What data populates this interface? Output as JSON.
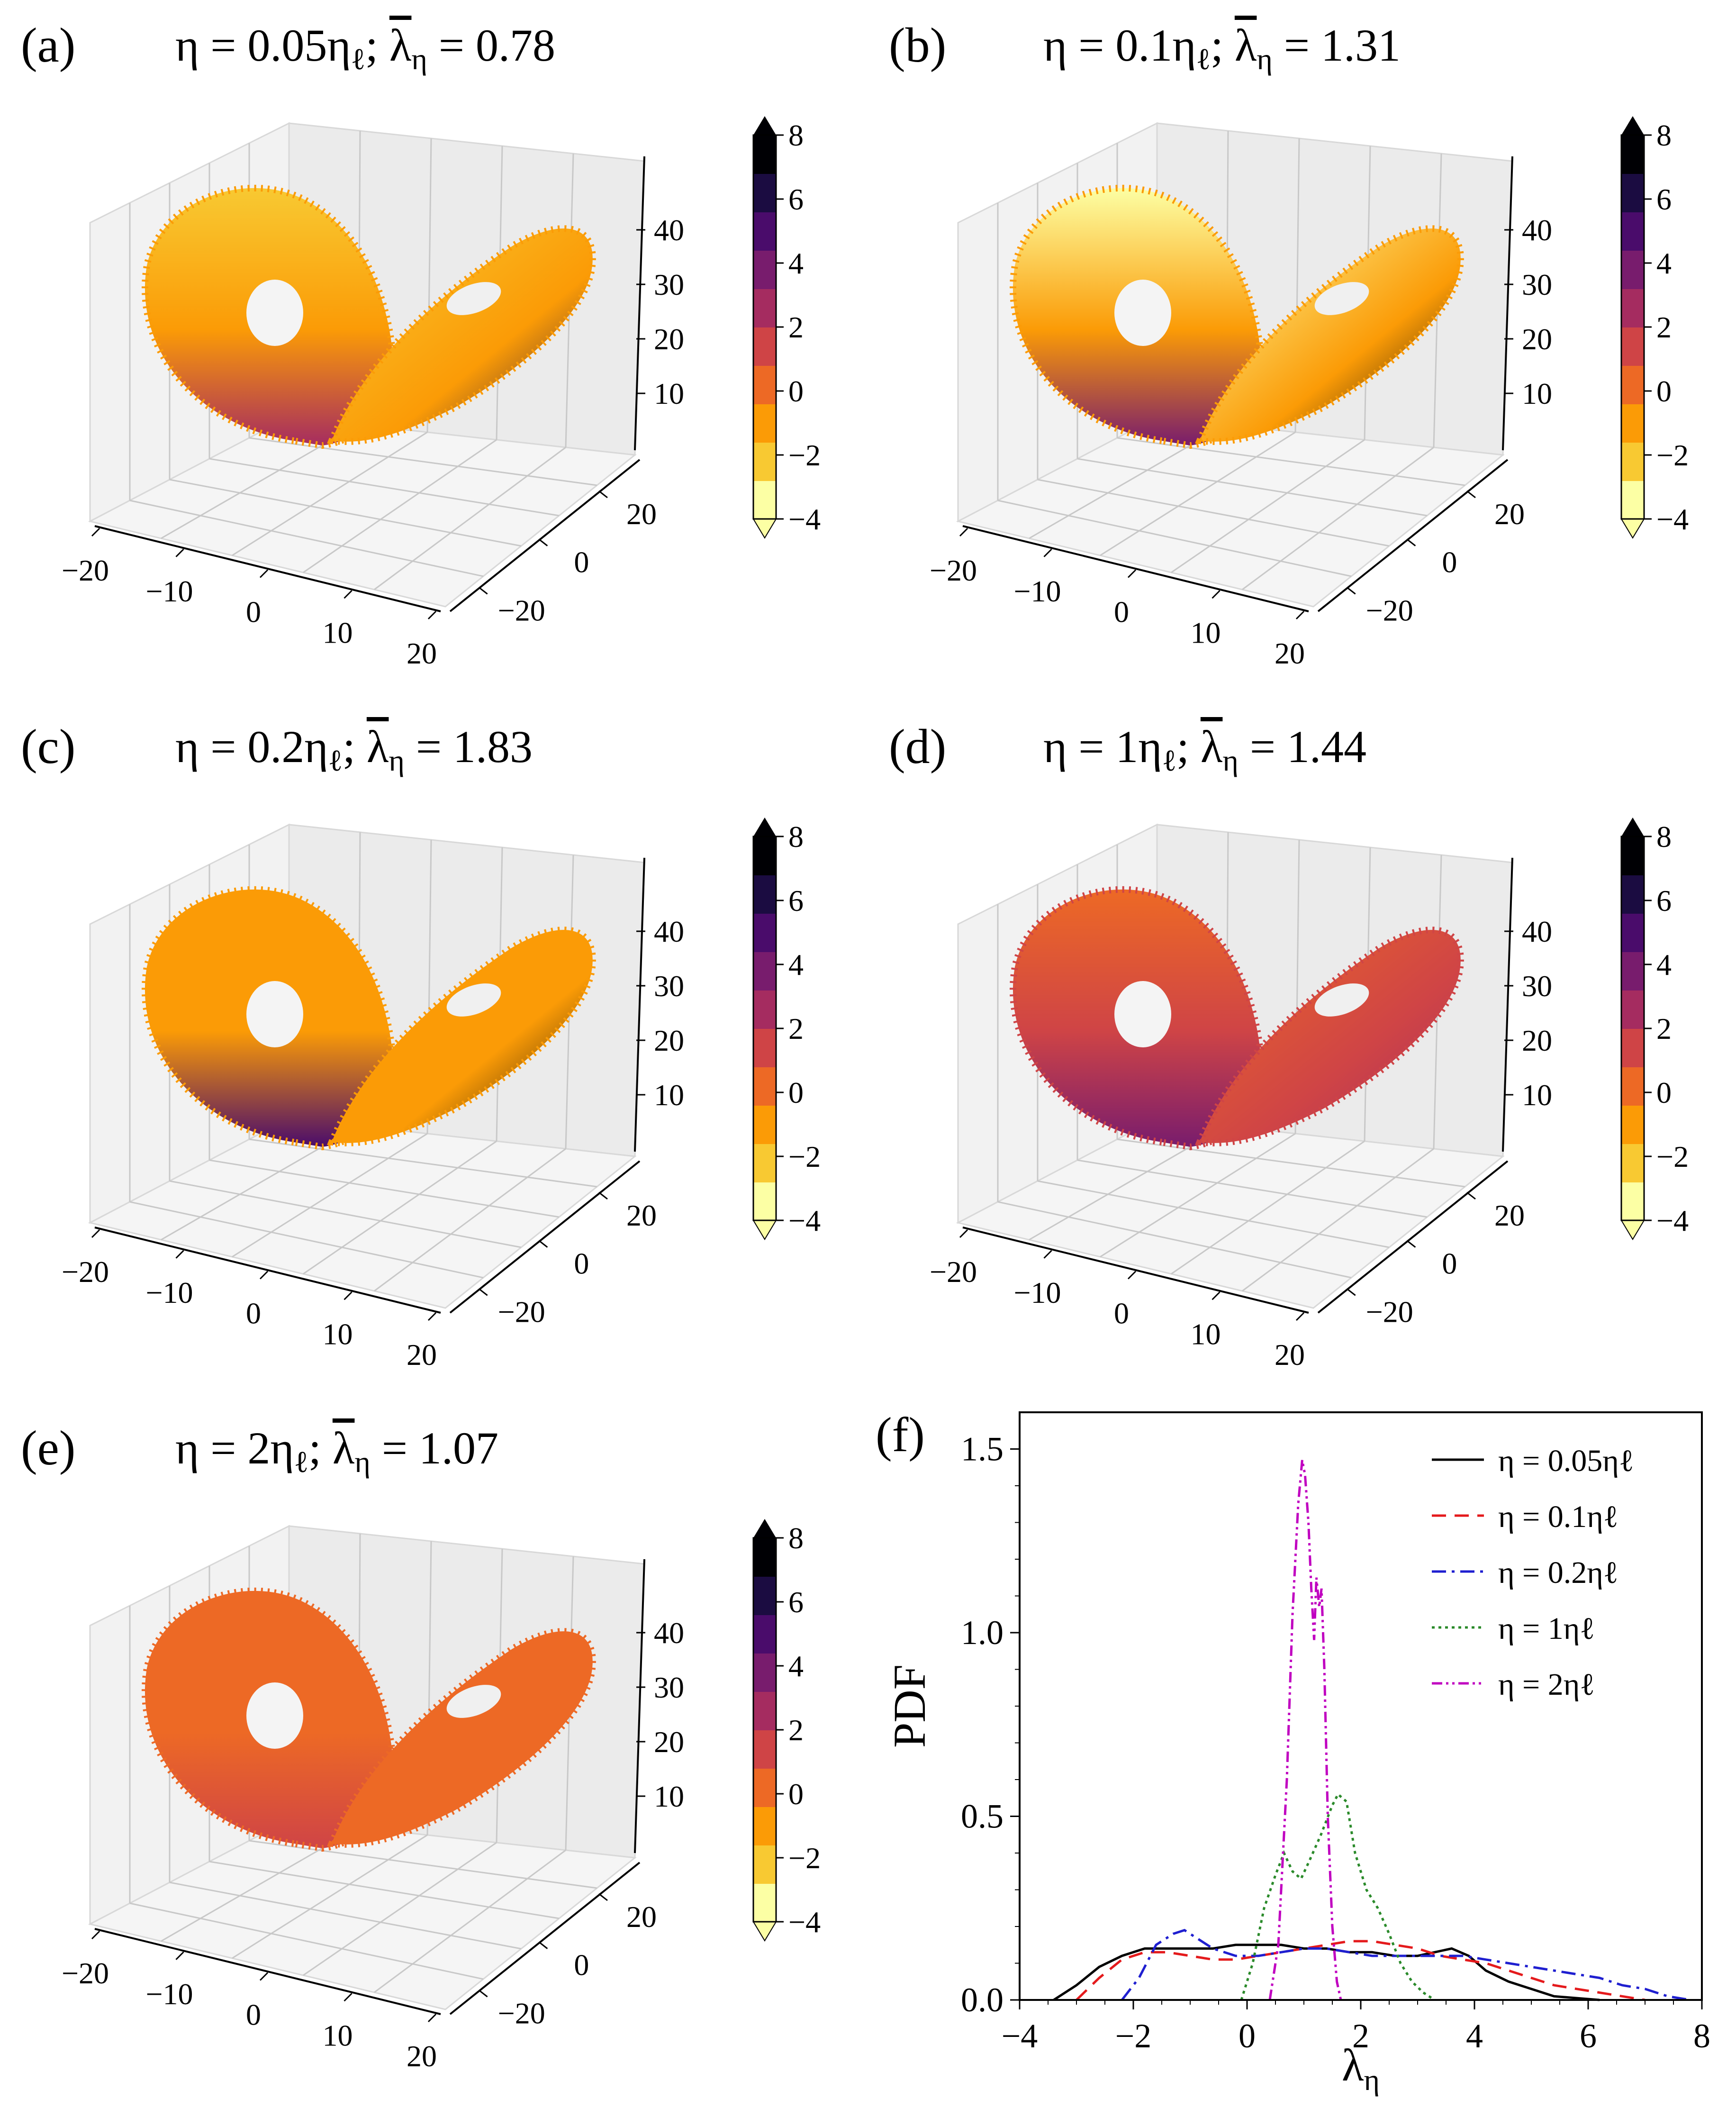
{
  "figure": {
    "panels": [
      {
        "label": "(a)",
        "eta": "0.05",
        "lambda_bar": "0.78"
      },
      {
        "label": "(b)",
        "eta": "0.1",
        "lambda_bar": "1.31"
      },
      {
        "label": "(c)",
        "eta": "0.2",
        "lambda_bar": "1.83"
      },
      {
        "label": "(d)",
        "eta": "1",
        "lambda_bar": "1.44"
      },
      {
        "label": "(e)",
        "eta": "2",
        "lambda_bar": "1.07"
      }
    ],
    "title_parts": {
      "eta_sym": "η = ",
      "eta_unit": "η",
      "eta_sub": "ℓ",
      "sep": "; ",
      "lambda_sym": "λ",
      "lambda_sub": "η",
      "eq": " = "
    },
    "colorbar": {
      "ticks": [
        "−4",
        "−2",
        "0",
        "2",
        "4",
        "6",
        "8"
      ],
      "colors": [
        "#fcffa4",
        "#f8c932",
        "#fb9b06",
        "#ed6925",
        "#cf4446",
        "#a52c60",
        "#781c6d",
        "#4a0c6b",
        "#1b0c41",
        "#000004"
      ]
    },
    "axis3d": {
      "x_ticks": [
        "−20",
        "−10",
        "0",
        "10",
        "20"
      ],
      "y_ticks": [
        "−20",
        "0",
        "20"
      ],
      "z_ticks": [
        "10",
        "20",
        "30",
        "40"
      ]
    }
  },
  "chart_data": {
    "type": "line",
    "label": "(f)",
    "xlabel": "λη",
    "ylabel": "PDF",
    "xlim": [
      -4,
      8
    ],
    "ylim": [
      0,
      1.6
    ],
    "xticks": [
      "−4",
      "−2",
      "0",
      "2",
      "4",
      "6",
      "8"
    ],
    "yticks": [
      "0.0",
      "0.5",
      "1.0",
      "1.5"
    ],
    "series": [
      {
        "name": "η = 0.05ηℓ",
        "color": "#000000",
        "dash": "",
        "x": [
          -3.4,
          -3.0,
          -2.6,
          -2.2,
          -1.8,
          -1.4,
          -1.0,
          -0.6,
          -0.2,
          0.2,
          0.6,
          1.0,
          1.4,
          1.8,
          2.2,
          2.6,
          3.0,
          3.3,
          3.6,
          3.9,
          4.2,
          4.6,
          5.0,
          5.4,
          5.8,
          6.2
        ],
        "y": [
          0.0,
          0.04,
          0.09,
          0.12,
          0.14,
          0.14,
          0.14,
          0.14,
          0.15,
          0.15,
          0.15,
          0.14,
          0.14,
          0.13,
          0.13,
          0.12,
          0.12,
          0.13,
          0.14,
          0.12,
          0.08,
          0.05,
          0.03,
          0.01,
          0.005,
          0.0
        ]
      },
      {
        "name": "η = 0.1ηℓ",
        "color": "#e41a1c",
        "dash": "30,18",
        "x": [
          -3.0,
          -2.6,
          -2.2,
          -1.8,
          -1.4,
          -1.0,
          -0.6,
          -0.2,
          0.2,
          0.6,
          1.0,
          1.4,
          1.8,
          2.2,
          2.6,
          3.0,
          3.4,
          3.8,
          4.2,
          4.6,
          5.0,
          5.4,
          5.8,
          6.2,
          6.6,
          7.0
        ],
        "y": [
          0.0,
          0.06,
          0.11,
          0.13,
          0.13,
          0.12,
          0.11,
          0.11,
          0.12,
          0.13,
          0.14,
          0.15,
          0.16,
          0.16,
          0.15,
          0.14,
          0.12,
          0.11,
          0.1,
          0.08,
          0.06,
          0.04,
          0.03,
          0.02,
          0.01,
          0.0
        ]
      },
      {
        "name": "η = 0.2ηℓ",
        "color": "#1f1fd0",
        "dash": "30,12,6,12",
        "x": [
          -2.2,
          -1.9,
          -1.6,
          -1.3,
          -1.1,
          -0.9,
          -0.6,
          -0.2,
          0.2,
          0.6,
          1.0,
          1.4,
          1.8,
          2.2,
          2.6,
          3.0,
          3.4,
          3.8,
          4.2,
          4.6,
          5.0,
          5.4,
          5.8,
          6.2,
          6.6,
          7.0,
          7.4,
          7.8
        ],
        "y": [
          0.0,
          0.06,
          0.15,
          0.18,
          0.19,
          0.17,
          0.14,
          0.12,
          0.12,
          0.13,
          0.14,
          0.14,
          0.13,
          0.12,
          0.12,
          0.12,
          0.12,
          0.12,
          0.11,
          0.1,
          0.09,
          0.08,
          0.07,
          0.06,
          0.04,
          0.03,
          0.01,
          0.0
        ]
      },
      {
        "name": "η = 1ηℓ",
        "color": "#2a8a2a",
        "dash": "6,8",
        "x": [
          -0.1,
          0.1,
          0.3,
          0.5,
          0.65,
          0.8,
          0.95,
          1.1,
          1.3,
          1.5,
          1.6,
          1.75,
          1.9,
          2.1,
          2.3,
          2.5,
          2.7,
          2.9,
          3.1,
          3.3
        ],
        "y": [
          0.0,
          0.1,
          0.25,
          0.34,
          0.4,
          0.35,
          0.33,
          0.38,
          0.45,
          0.53,
          0.56,
          0.54,
          0.4,
          0.3,
          0.25,
          0.18,
          0.1,
          0.05,
          0.02,
          0.0
        ]
      },
      {
        "name": "η = 2ηℓ",
        "color": "#c000c0",
        "dash": "22,8,5,8,5,8",
        "x": [
          0.4,
          0.55,
          0.7,
          0.8,
          0.9,
          0.97,
          1.02,
          1.08,
          1.13,
          1.18,
          1.22,
          1.27,
          1.31,
          1.36,
          1.42,
          1.5,
          1.58,
          1.65
        ],
        "y": [
          0.0,
          0.15,
          0.6,
          1.05,
          1.35,
          1.47,
          1.43,
          1.3,
          1.12,
          0.98,
          1.15,
          1.07,
          1.12,
          0.9,
          0.5,
          0.2,
          0.05,
          0.0
        ]
      }
    ]
  }
}
